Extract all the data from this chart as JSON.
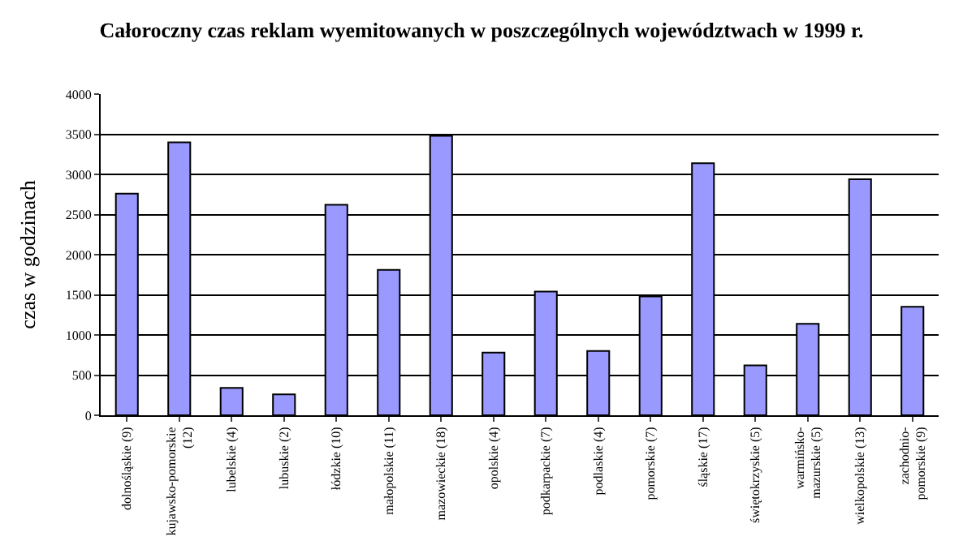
{
  "chart_data": {
    "type": "bar",
    "title": "Całoroczny czas reklam wyemitowanych w poszczególnych województwach w 1999 r.",
    "ylabel": "czas w godzinach",
    "categories": [
      "dolnośląskie (9)",
      "kujawsko-pomorskie\n(12)",
      "lubelskie (4)",
      "lubuskie (2)",
      "łódzkie (10)",
      "małopolskie (11)",
      "mazowieckie (18)",
      "opolskie (4)",
      "podkarpackie (7)",
      "podlaskie (4)",
      "pomorskie (7)",
      "śląskie (17)",
      "świętokrzyskie (5)",
      "warmińsko-\nmazurskie (5)",
      "wielkopolskie (13)",
      "zachodnio-\npomorskie (9)"
    ],
    "values": [
      2760,
      3400,
      340,
      260,
      2620,
      1810,
      3480,
      780,
      1540,
      800,
      1480,
      3140,
      620,
      1140,
      2940,
      1350
    ],
    "color": "#9999ff",
    "ylim": [
      0,
      4000
    ],
    "yticks": [
      0,
      500,
      1000,
      1500,
      2000,
      2500,
      3000,
      3500,
      4000
    ],
    "grid": "y",
    "legend": false
  }
}
